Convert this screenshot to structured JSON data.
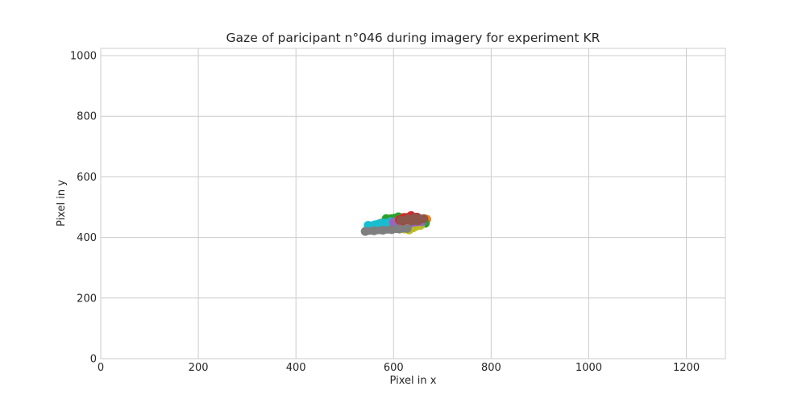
{
  "chart_data": {
    "type": "scatter",
    "title": "Gaze of paricipant n°046 during imagery for experiment KR",
    "xlabel": "Pixel in x",
    "ylabel": "Pixel in y",
    "xlim": [
      0,
      1280
    ],
    "ylim": [
      0,
      1024
    ],
    "xticks": [
      0,
      200,
      400,
      600,
      800,
      1000,
      1200
    ],
    "yticks": [
      0,
      200,
      400,
      600,
      800,
      1000
    ],
    "grid": true,
    "legend": "none",
    "colors": [
      "#1f77b4",
      "#ff7f0e",
      "#2ca02c",
      "#d62728",
      "#9467bd",
      "#8c564b",
      "#e377c2",
      "#7f7f7f",
      "#bcbd22",
      "#17becf"
    ],
    "series": [
      {
        "color": "#ff7f0e",
        "x": [
          575,
          600,
          625,
          650,
          668,
          640,
          605
        ],
        "y": [
          448,
          455,
          462,
          465,
          460,
          452,
          446
        ]
      },
      {
        "color": "#2ca02c",
        "x": [
          585,
          610,
          635,
          655,
          665,
          628,
          600
        ],
        "y": [
          462,
          468,
          466,
          455,
          447,
          448,
          455
        ]
      },
      {
        "color": "#1f77b4",
        "x": [
          575,
          595,
          612,
          625,
          608,
          588
        ],
        "y": [
          432,
          438,
          442,
          436,
          430,
          428
        ]
      },
      {
        "color": "#e377c2",
        "x": [
          598,
          615,
          635,
          650,
          628
        ],
        "y": [
          436,
          440,
          444,
          442,
          436
        ]
      },
      {
        "color": "#bcbd22",
        "x": [
          605,
          622,
          640,
          655,
          632
        ],
        "y": [
          438,
          428,
          432,
          440,
          425
        ]
      },
      {
        "color": "#17becf",
        "x": [
          548,
          562,
          578,
          595,
          615,
          570
        ],
        "y": [
          440,
          442,
          448,
          452,
          456,
          445
        ]
      },
      {
        "color": "#9467bd",
        "x": [
          600,
          622,
          642,
          658,
          630
        ],
        "y": [
          450,
          456,
          460,
          452,
          444
        ]
      },
      {
        "color": "#d62728",
        "x": [
          612,
          622,
          636,
          648,
          640,
          625,
          615
        ],
        "y": [
          458,
          466,
          472,
          467,
          456,
          452,
          454
        ]
      },
      {
        "color": "#8c564b",
        "x": [
          615,
          630,
          645,
          662,
          650,
          632
        ],
        "y": [
          456,
          462,
          466,
          462,
          455,
          452
        ]
      },
      {
        "color": "#7f7f7f",
        "x": [
          542,
          560,
          578,
          596,
          612,
          628
        ],
        "y": [
          420,
          422,
          424,
          426,
          428,
          430
        ]
      }
    ]
  }
}
